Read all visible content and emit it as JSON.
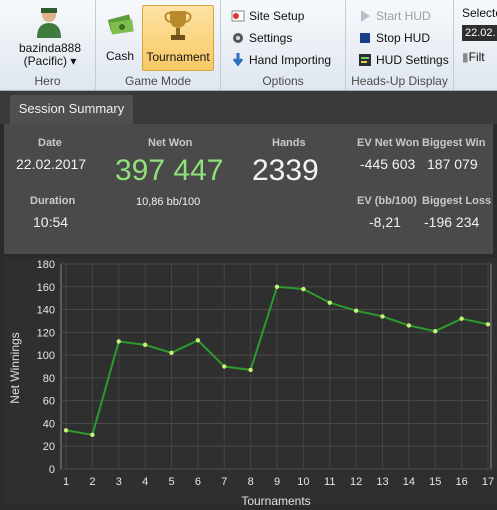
{
  "ribbon": {
    "hero": {
      "name": "bazinda888",
      "site": "(Pacific)",
      "arrow": "▾",
      "group_label": "Hero"
    },
    "game_mode": {
      "cash_label": "Cash",
      "tournament_label": "Tournament",
      "group_label": "Game Mode",
      "selected": "Tournament"
    },
    "options": {
      "site_setup": "Site Setup",
      "settings": "Settings",
      "hand_importing": "Hand Importing",
      "group_label": "Options"
    },
    "hud": {
      "start": "Start HUD",
      "stop": "Stop HUD",
      "settings": "HUD Settings",
      "group_label": "Heads-Up Display"
    },
    "selected": {
      "label": "Selecte",
      "date": "22.02.",
      "filter": "Filt"
    }
  },
  "tab": {
    "label": "Session Summary"
  },
  "summary": {
    "date_label": "Date",
    "date": "22.02.2017",
    "duration_label": "Duration",
    "duration": "10:54",
    "net_won_label": "Net Won",
    "net_won": "397 447",
    "bb100": "10,86 bb/100",
    "hands_label": "Hands",
    "hands": "2339",
    "ev_net_won_label": "EV Net Won",
    "ev_net_won": "-445 603",
    "biggest_win_label": "Biggest Win",
    "biggest_win": "187 079",
    "ev_bb100_label": "EV (bb/100)",
    "ev_bb100": "-8,21",
    "biggest_loss_label": "Biggest Loss",
    "biggest_loss": "-196 234"
  },
  "colors": {
    "net_won": "#8fe27a",
    "line": "#2d9a2d",
    "point": "#c8f07a"
  },
  "chart_data": {
    "type": "line",
    "xlabel": "Tournaments",
    "ylabel": "Net Winnings",
    "ylim": [
      0,
      180
    ],
    "yticks": [
      0,
      20,
      40,
      60,
      80,
      100,
      120,
      140,
      160,
      180
    ],
    "categories": [
      "1",
      "2",
      "3",
      "4",
      "5",
      "6",
      "7",
      "8",
      "9",
      "10",
      "11",
      "12",
      "13",
      "14",
      "15",
      "16",
      "17"
    ],
    "series": [
      {
        "values": [
          34,
          30,
          112,
          109,
          102,
          113,
          90,
          87,
          160,
          158,
          146,
          139,
          134,
          126,
          121,
          132,
          127
        ]
      }
    ],
    "grid": true
  }
}
